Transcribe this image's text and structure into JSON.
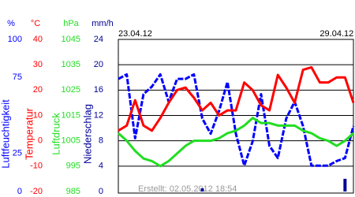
{
  "chart_data": {
    "type": "line",
    "created": "Erstellt: 02.05.2012 18:54",
    "xlim": [
      0,
      28
    ],
    "xticks": [
      {
        "value": 0,
        "label": "23.04.12"
      },
      {
        "value": 24,
        "label": "29.04.12"
      }
    ],
    "grid": true,
    "series": [
      {
        "name": "Luftfeuchtigkeit",
        "unit": "%",
        "type": "line",
        "color": "#0000ff",
        "ylim": [
          0,
          100
        ],
        "yticks": [
          0,
          25,
          75,
          100
        ],
        "values": [
          74,
          77,
          35,
          64,
          69,
          77,
          59,
          74,
          74,
          77,
          48,
          38,
          53,
          72,
          38,
          17,
          33,
          64,
          30,
          22,
          48,
          59,
          43,
          17,
          17,
          17,
          20,
          22,
          43
        ]
      },
      {
        "name": "Temperatur",
        "unit": "°C",
        "type": "line",
        "color": "#ff0000",
        "ylim": [
          -20,
          40
        ],
        "yticks": [
          -20,
          -10,
          0,
          10,
          20,
          30,
          40
        ],
        "values": [
          4,
          6,
          16,
          6,
          4,
          9,
          15,
          20,
          21,
          17,
          12,
          15,
          10,
          12,
          12,
          23,
          20,
          14,
          12,
          26,
          21,
          15,
          28,
          29,
          23,
          23,
          25,
          25,
          15
        ]
      },
      {
        "name": "Luftdruck",
        "unit": "hPa",
        "type": "line",
        "color": "#22dd22",
        "ylim": [
          985,
          1045
        ],
        "yticks": [
          985,
          995,
          1005,
          1015,
          1025,
          1035,
          1045
        ],
        "values": [
          1008,
          1005,
          1001,
          998,
          997,
          995,
          997,
          1000,
          1003,
          1005,
          1005,
          1005,
          1006,
          1008,
          1009,
          1011,
          1014,
          1012,
          1012,
          1011,
          1011,
          1011,
          1009,
          1008,
          1006,
          1005,
          1003,
          1005,
          1008
        ]
      },
      {
        "name": "Niederschlag",
        "unit": "mm/h",
        "type": "bar",
        "color": "#000099",
        "ylim": [
          0,
          24
        ],
        "yticks": [
          0,
          4,
          8,
          12,
          16,
          20,
          24
        ],
        "values": [
          0,
          0,
          0,
          0,
          0,
          0,
          0,
          0,
          0,
          0,
          0.5,
          0,
          0,
          0,
          0,
          0,
          0,
          0,
          0,
          0,
          0,
          0,
          0,
          0,
          0,
          0,
          0,
          2,
          0
        ]
      }
    ]
  }
}
